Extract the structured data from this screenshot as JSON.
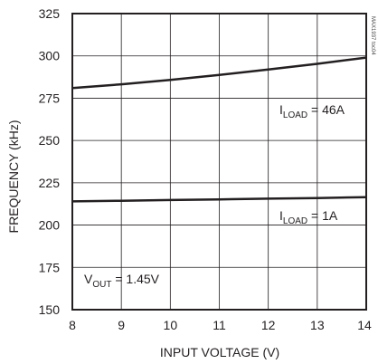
{
  "chart_data": {
    "type": "line",
    "xlabel": "INPUT VOLTAGE (V)",
    "ylabel": "FREQUENCY (kHz)",
    "xlim": [
      8,
      14
    ],
    "ylim": [
      150,
      325
    ],
    "xticks": [
      8,
      9,
      10,
      11,
      12,
      13,
      14
    ],
    "yticks": [
      150,
      175,
      200,
      225,
      250,
      275,
      300,
      325
    ],
    "grid": true,
    "series": [
      {
        "label_main": "I",
        "label_sub": "LOAD",
        "label_rest": " = 46A",
        "x": [
          8,
          9,
          10,
          11,
          12,
          13,
          14
        ],
        "values": [
          281,
          283.2,
          285.8,
          288.7,
          291.9,
          295.3,
          299
        ]
      },
      {
        "label_main": "I",
        "label_sub": "LOAD",
        "label_rest": " = 1A",
        "x": [
          8,
          9,
          10,
          11,
          12,
          13,
          14
        ],
        "values": [
          214,
          214.4,
          214.8,
          215.2,
          215.6,
          216,
          216.5
        ]
      }
    ],
    "annotation": {
      "main": "V",
      "sub": "OUT",
      "rest": " = 1.45V"
    },
    "watermark": "MAX1937 toc04"
  }
}
